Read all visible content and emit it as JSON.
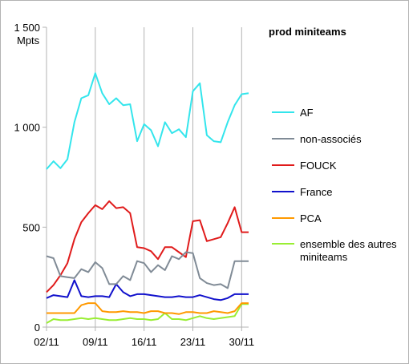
{
  "chart_data": {
    "type": "line",
    "title": "prod miniteams",
    "ylabel": "Mpts",
    "xlabel": "",
    "ylim": [
      0,
      1500
    ],
    "yticks": [
      {
        "value": 0,
        "label": "0"
      },
      {
        "value": 500,
        "label": "500"
      },
      {
        "value": 1000,
        "label": "1 000"
      },
      {
        "value": 1500,
        "label": "1 500"
      }
    ],
    "x": [
      "02/11",
      "03/11",
      "04/11",
      "05/11",
      "06/11",
      "07/11",
      "08/11",
      "09/11",
      "10/11",
      "11/11",
      "12/11",
      "13/11",
      "14/11",
      "15/11",
      "16/11",
      "17/11",
      "18/11",
      "19/11",
      "20/11",
      "21/11",
      "22/11",
      "23/11",
      "24/11",
      "25/11",
      "26/11",
      "27/11",
      "28/11",
      "29/11",
      "30/11",
      "01/12"
    ],
    "xtick_labels": [
      "02/11",
      "09/11",
      "16/11",
      "23/11",
      "30/11"
    ],
    "xtick_indices": [
      0,
      7,
      14,
      21,
      28
    ],
    "grid": "vertical",
    "legend_position": "right",
    "series": [
      {
        "name": "AF",
        "color": "#33e5ec",
        "values": [
          790,
          830,
          795,
          840,
          1025,
          1145,
          1160,
          1270,
          1170,
          1115,
          1145,
          1110,
          1115,
          930,
          1015,
          985,
          905,
          1025,
          970,
          990,
          950,
          1180,
          1220,
          960,
          930,
          925,
          1025,
          1110,
          1165,
          1170
        ]
      },
      {
        "name": "non-associés",
        "color": "#808b96",
        "values": [
          355,
          345,
          255,
          250,
          245,
          290,
          275,
          325,
          295,
          215,
          215,
          255,
          235,
          330,
          320,
          275,
          310,
          285,
          355,
          340,
          375,
          370,
          245,
          220,
          210,
          215,
          195,
          330,
          330,
          330
        ]
      },
      {
        "name": "FOUCK",
        "color": "#e01b1b",
        "values": [
          175,
          210,
          260,
          320,
          440,
          525,
          570,
          610,
          590,
          630,
          595,
          600,
          570,
          400,
          395,
          380,
          340,
          400,
          400,
          375,
          350,
          530,
          535,
          430,
          440,
          450,
          520,
          600,
          475,
          475
        ]
      },
      {
        "name": "France",
        "color": "#1111cc",
        "values": [
          145,
          160,
          155,
          150,
          235,
          155,
          150,
          155,
          155,
          150,
          215,
          175,
          155,
          165,
          165,
          160,
          155,
          150,
          150,
          155,
          150,
          150,
          160,
          150,
          140,
          135,
          145,
          165,
          165,
          165
        ]
      },
      {
        "name": "PCA",
        "color": "#ff9900",
        "values": [
          70,
          70,
          70,
          70,
          70,
          110,
          120,
          120,
          80,
          75,
          75,
          80,
          75,
          75,
          70,
          80,
          80,
          70,
          70,
          65,
          75,
          75,
          70,
          70,
          80,
          75,
          70,
          80,
          120,
          120
        ]
      },
      {
        "name": "ensemble des autres miniteams",
        "color": "#99ee33",
        "values": [
          20,
          40,
          35,
          35,
          40,
          45,
          40,
          45,
          40,
          35,
          35,
          40,
          45,
          40,
          40,
          35,
          40,
          70,
          40,
          40,
          35,
          45,
          55,
          45,
          40,
          45,
          50,
          55,
          115,
          115
        ]
      }
    ]
  }
}
